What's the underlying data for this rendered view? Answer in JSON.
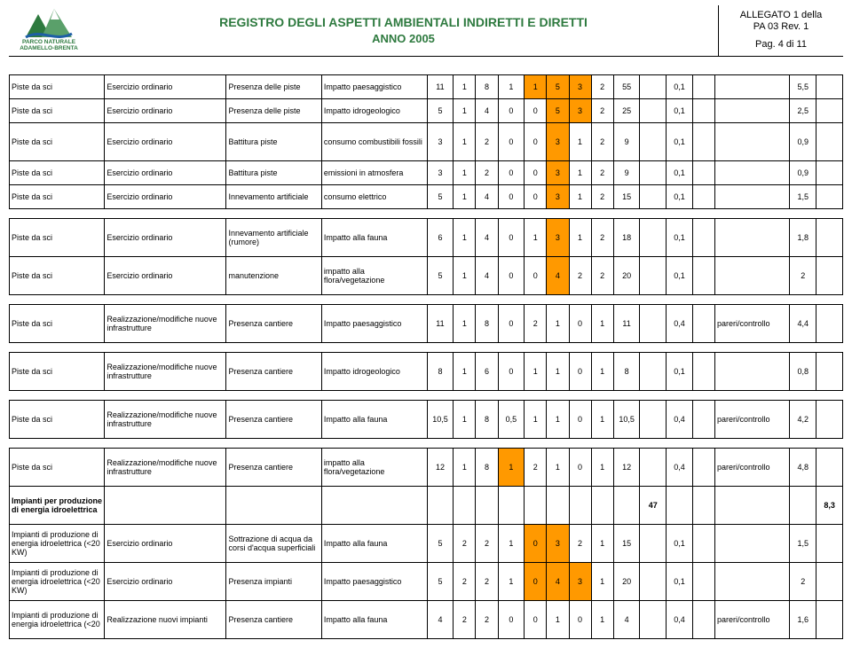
{
  "header": {
    "logo_top": "PARCO NATURALE",
    "logo_bot": "ADAMELLO-BRENTA",
    "title_main": "REGISTRO DEGLI ASPETTI AMBIENTALI INDIRETTI E DIRETTI",
    "title_sub": "ANNO 2005",
    "allegato1": "ALLEGATO 1 della",
    "allegato2": "PA 03 Rev. 1",
    "page": "Pag. 4 di 11"
  },
  "cols": {
    "n": [
      "",
      "",
      "",
      "",
      "",
      "",
      "",
      "",
      "",
      "",
      "",
      "",
      "",
      "",
      "",
      ""
    ]
  },
  "labels": {
    "pareri": "pareri/controllo"
  },
  "rows": [
    {
      "c1": "Piste da sci",
      "c2": "Esercizio ordinario",
      "c3": "Presenza delle piste",
      "c4": "Impatto paesaggistico",
      "n": [
        "11",
        "1",
        "8",
        "1",
        "1",
        "5",
        "3",
        "2",
        "55",
        "",
        "0,1",
        "",
        "",
        "5,5",
        ""
      ],
      "hl": [
        4,
        5,
        6
      ]
    },
    {
      "c1": "Piste da sci",
      "c2": "Esercizio ordinario",
      "c3": "Presenza delle piste",
      "c4": "Impatto idrogeologico",
      "n": [
        "5",
        "1",
        "4",
        "0",
        "0",
        "5",
        "3",
        "2",
        "25",
        "",
        "0,1",
        "",
        "",
        "2,5",
        ""
      ],
      "hl": [
        5,
        6
      ]
    },
    {
      "c1": "Piste da sci",
      "c2": "Esercizio ordinario",
      "c3": "Battitura piste",
      "c4": "consumo combustibili fossili",
      "n": [
        "3",
        "1",
        "2",
        "0",
        "0",
        "3",
        "1",
        "2",
        "9",
        "",
        "0,1",
        "",
        "",
        "0,9",
        ""
      ],
      "hl": [
        5
      ]
    },
    {
      "c1": "Piste da sci",
      "c2": "Esercizio ordinario",
      "c3": "Battitura piste",
      "c4": "emissioni in atmosfera",
      "n": [
        "3",
        "1",
        "2",
        "0",
        "0",
        "3",
        "1",
        "2",
        "9",
        "",
        "0,1",
        "",
        "",
        "0,9",
        ""
      ],
      "hl": [
        5
      ]
    },
    {
      "c1": "Piste da sci",
      "c2": "Esercizio ordinario",
      "c3": "Innevamento artificiale",
      "c4": "consumo elettrico",
      "n": [
        "5",
        "1",
        "4",
        "0",
        "0",
        "3",
        "1",
        "2",
        "15",
        "",
        "0,1",
        "",
        "",
        "1,5",
        ""
      ],
      "hl": [
        5
      ]
    },
    {
      "spacer": true
    },
    {
      "c1": "Piste da sci",
      "c2": "Esercizio ordinario",
      "c3": "Innevamento artificiale (rumore)",
      "c4": "Impatto alla fauna",
      "n": [
        "6",
        "1",
        "4",
        "0",
        "1",
        "3",
        "1",
        "2",
        "18",
        "",
        "0,1",
        "",
        "",
        "1,8",
        ""
      ],
      "hl": [
        5
      ]
    },
    {
      "c1": "Piste da sci",
      "c2": "Esercizio ordinario",
      "c3": "manutenzione",
      "c4": "impatto alla flora/vegetazione",
      "n": [
        "5",
        "1",
        "4",
        "0",
        "0",
        "4",
        "2",
        "2",
        "20",
        "",
        "0,1",
        "",
        "",
        "2",
        ""
      ],
      "hl": [
        5
      ]
    },
    {
      "spacer": true
    },
    {
      "c1": "Piste da sci",
      "c2": "Realizzazione/modifiche nuove infrastrutture",
      "c3": "Presenza cantiere",
      "c4": "Impatto paesaggistico",
      "n": [
        "11",
        "1",
        "8",
        "0",
        "2",
        "1",
        "0",
        "1",
        "11",
        "",
        "0,4",
        "",
        "pareri/controllo",
        "4,4",
        ""
      ],
      "hl": []
    },
    {
      "spacer": true
    },
    {
      "c1": "Piste da sci",
      "c2": "Realizzazione/modifiche nuove infrastrutture",
      "c3": "Presenza cantiere",
      "c4": "Impatto idrogeologico",
      "n": [
        "8",
        "1",
        "6",
        "0",
        "1",
        "1",
        "0",
        "1",
        "8",
        "",
        "0,1",
        "",
        "",
        "0,8",
        ""
      ],
      "hl": []
    },
    {
      "spacer": true
    },
    {
      "c1": "Piste da sci",
      "c2": "Realizzazione/modifiche nuove infrastrutture",
      "c3": "Presenza cantiere",
      "c4": "Impatto alla fauna",
      "n": [
        "10,5",
        "1",
        "8",
        "0,5",
        "1",
        "1",
        "0",
        "1",
        "10,5",
        "",
        "0,4",
        "",
        "pareri/controllo",
        "4,2",
        ""
      ],
      "hl": []
    },
    {
      "spacer": true
    },
    {
      "c1": "Piste da sci",
      "c2": "Realizzazione/modifiche nuove infrastrutture",
      "c3": "Presenza cantiere",
      "c4": "impatto alla flora/vegetazione",
      "n": [
        "12",
        "1",
        "8",
        "1",
        "2",
        "1",
        "0",
        "1",
        "12",
        "",
        "0,4",
        "",
        "pareri/controllo",
        "4,8",
        ""
      ],
      "hl": [
        3
      ]
    },
    {
      "c1": "Impianti per produzione  di energia idroelettrica",
      "c2": "",
      "c3": "",
      "c4": "",
      "n": [
        "",
        "",
        "",
        "",
        "",
        "",
        "",
        "",
        "",
        "47",
        "",
        "",
        "",
        "",
        "8,3"
      ],
      "section": true
    },
    {
      "c1": "Impianti di produzione di energia idroelettrica (<20 KW)",
      "c2": "Esercizio ordinario",
      "c3": "Sottrazione di acqua da corsi d'acqua superficiali",
      "c4": "Impatto alla fauna",
      "n": [
        "5",
        "2",
        "2",
        "1",
        "0",
        "3",
        "2",
        "1",
        "15",
        "",
        "0,1",
        "",
        "",
        "1,5",
        ""
      ],
      "hl": [
        4,
        5
      ]
    },
    {
      "c1": "Impianti di produzione di energia idroelettrica (<20 KW)",
      "c2": "Esercizio ordinario",
      "c3": "Presenza impianti",
      "c4": "Impatto paesaggistico",
      "n": [
        "5",
        "2",
        "2",
        "1",
        "0",
        "4",
        "3",
        "1",
        "20",
        "",
        "0,1",
        "",
        "",
        "2",
        ""
      ],
      "hl": [
        4,
        5,
        6
      ]
    },
    {
      "c1": "Impianti di produzione di energia idroelettrica (<20",
      "c2": "Realizzazione nuovi impianti",
      "c3": "Presenza cantiere",
      "c4": "Impatto alla fauna",
      "n": [
        "4",
        "2",
        "2",
        "0",
        "0",
        "1",
        "0",
        "1",
        "4",
        "",
        "0,4",
        "",
        "pareri/controllo",
        "1,6",
        ""
      ],
      "hl": []
    }
  ],
  "style": {
    "hl_color": "#ff9900"
  }
}
